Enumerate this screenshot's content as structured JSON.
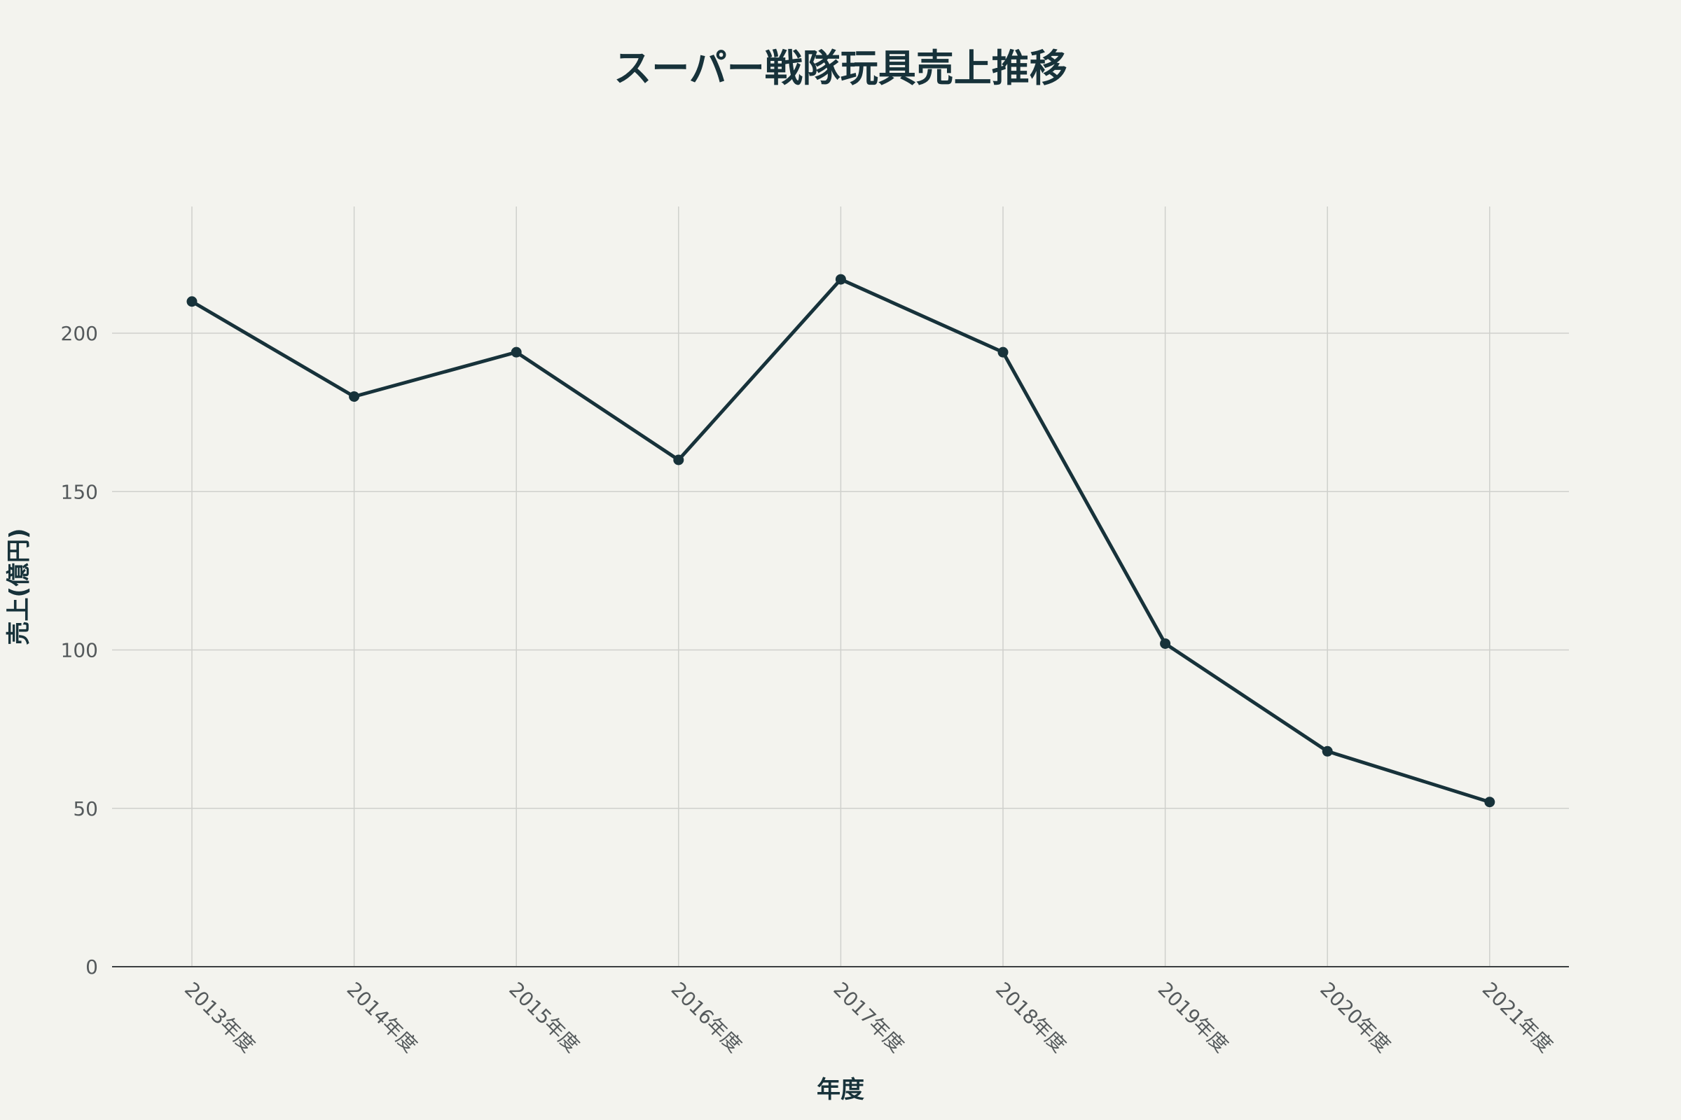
{
  "chart_data": {
    "type": "line",
    "title": "スーパー戦隊玩具売上推移",
    "xlabel": "年度",
    "ylabel": "売上(億円)",
    "categories": [
      "2013年度",
      "2014年度",
      "2015年度",
      "2016年度",
      "2017年度",
      "2018年度",
      "2019年度",
      "2020年度",
      "2021年度"
    ],
    "series": [
      {
        "values": [
          210,
          180,
          194,
          160,
          217,
          194,
          102,
          68,
          52
        ]
      }
    ],
    "ylim": [
      0,
      240
    ],
    "yticks": [
      0,
      50,
      100,
      150,
      200
    ],
    "grid": true,
    "legend": "none",
    "x_tick_rotation": 45
  },
  "colors": {
    "line": "#17323a",
    "marker": "#17323a",
    "text": "#17323a",
    "tick_text": "#555a5c",
    "grid": "#cfd0cc",
    "axis": "#3b3f40",
    "background": "#f3f3ee"
  }
}
